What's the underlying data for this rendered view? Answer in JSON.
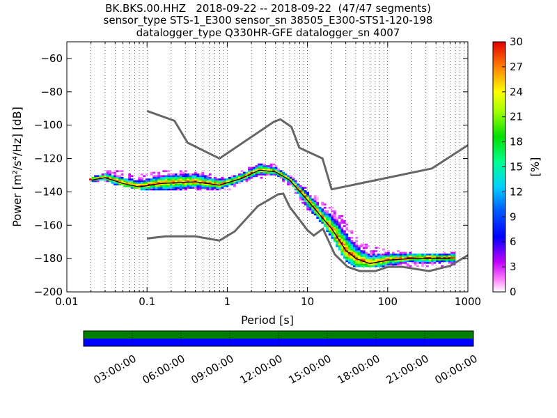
{
  "title_lines": [
    "BK.BKS.00.HHZ   2018-09-22 -- 2018-09-22  (47/47 segments)",
    "sensor_type STS-1_E300 sensor_sn 38505_E300-STS1-120-198",
    "datalogger_type Q330HR-GFE datalogger_sn 4007"
  ],
  "chart_data": [
    {
      "type": "heatmap",
      "xlabel": "Period [s]",
      "ylabel": "Power [m²/s⁴/Hz] [dB]",
      "x_scale": "log",
      "xlim": [
        0.01,
        1000
      ],
      "ylim": [
        -200,
        -50
      ],
      "x_ticks": [
        0.01,
        0.1,
        1,
        10,
        100,
        1000
      ],
      "x_tick_labels": [
        "0.01",
        "0.1",
        "1",
        "10",
        "100",
        "1000"
      ],
      "y_ticks": [
        -200,
        -180,
        -160,
        -140,
        -120,
        -100,
        -80,
        -60
      ],
      "y_tick_labels": [
        "−200",
        "−180",
        "−160",
        "−140",
        "−120",
        "−100",
        "−80",
        "−60"
      ],
      "grid": "dotted vertical",
      "colorbar": {
        "label": "[%]",
        "min": 0,
        "max": 30,
        "ticks": [
          0,
          3,
          6,
          9,
          12,
          15,
          18,
          21,
          24,
          27,
          30
        ],
        "placement": "right"
      },
      "noise_model_high": [
        [
          0.1,
          -91.5
        ],
        [
          0.22,
          -97.4
        ],
        [
          0.32,
          -110.5
        ],
        [
          0.8,
          -120
        ],
        [
          3.8,
          -98
        ],
        [
          4.6,
          -96.5
        ],
        [
          6.3,
          -101
        ],
        [
          7.9,
          -113.5
        ],
        [
          15.4,
          -120
        ],
        [
          20,
          -138.5
        ],
        [
          354.8,
          -126
        ],
        [
          1000,
          -112
        ]
      ],
      "noise_model_low": [
        [
          0.1,
          -168
        ],
        [
          0.17,
          -166.7
        ],
        [
          0.4,
          -166.7
        ],
        [
          0.8,
          -169.2
        ],
        [
          1.24,
          -163.7
        ],
        [
          2.4,
          -148.6
        ],
        [
          4.3,
          -141.5
        ],
        [
          5,
          -141.1
        ],
        [
          6,
          -149
        ],
        [
          10,
          -163
        ],
        [
          12,
          -166.2
        ],
        [
          15.6,
          -162.1
        ],
        [
          21.9,
          -177.5
        ],
        [
          31.6,
          -185
        ],
        [
          45,
          -187.5
        ],
        [
          70,
          -187.5
        ],
        [
          101,
          -185
        ],
        [
          154,
          -185
        ],
        [
          328,
          -187.5
        ],
        [
          600,
          -184.4
        ],
        [
          1000,
          -178
        ]
      ],
      "median_curve": [
        [
          0.02,
          -133
        ],
        [
          0.03,
          -131.5
        ],
        [
          0.05,
          -135
        ],
        [
          0.08,
          -137
        ],
        [
          0.15,
          -135
        ],
        [
          0.4,
          -134
        ],
        [
          0.8,
          -136
        ],
        [
          1.5,
          -132
        ],
        [
          2.5,
          -127
        ],
        [
          4,
          -128
        ],
        [
          6,
          -133
        ],
        [
          10,
          -145
        ],
        [
          15,
          -155
        ],
        [
          20,
          -162
        ],
        [
          30,
          -175
        ],
        [
          40,
          -180
        ],
        [
          60,
          -183
        ],
        [
          100,
          -181
        ],
        [
          200,
          -180
        ],
        [
          600,
          -180
        ]
      ],
      "high_curve": [
        [
          0.02,
          -133
        ],
        [
          0.03,
          -129
        ],
        [
          0.05,
          -128.5
        ],
        [
          0.08,
          -131
        ],
        [
          0.2,
          -128
        ],
        [
          0.5,
          -130
        ],
        [
          1,
          -133
        ],
        [
          2.5,
          -124
        ],
        [
          4,
          -125
        ],
        [
          6,
          -131
        ],
        [
          10,
          -140
        ],
        [
          15,
          -147
        ],
        [
          25,
          -153
        ],
        [
          40,
          -168
        ],
        [
          60,
          -174
        ],
        [
          100,
          -176
        ],
        [
          200,
          -178
        ],
        [
          500,
          -178
        ],
        [
          700,
          -177
        ]
      ],
      "low_curve": [
        [
          0.02,
          -133
        ],
        [
          0.05,
          -136
        ],
        [
          0.08,
          -138
        ],
        [
          0.15,
          -139
        ],
        [
          0.5,
          -139
        ],
        [
          1,
          -139
        ],
        [
          2,
          -132
        ],
        [
          4,
          -130
        ],
        [
          6,
          -136
        ],
        [
          10,
          -150
        ],
        [
          15,
          -158
        ],
        [
          20,
          -167
        ],
        [
          30,
          -181
        ],
        [
          40,
          -185
        ],
        [
          70,
          -185
        ],
        [
          150,
          -184
        ],
        [
          300,
          -185
        ],
        [
          600,
          -184
        ]
      ]
    },
    {
      "type": "timeline",
      "tick_labels": [
        "03:00:00",
        "06:00:00",
        "09:00:00",
        "12:00:00",
        "15:00:00",
        "18:00:00",
        "21:00:00",
        "00:00:00"
      ],
      "tracks": [
        {
          "name": "",
          "color": "#007f00",
          "coverage": [
            [
              0,
              1
            ]
          ]
        },
        {
          "name": "",
          "color": "#0000ff",
          "coverage": [
            [
              0,
              1
            ]
          ]
        }
      ]
    }
  ]
}
